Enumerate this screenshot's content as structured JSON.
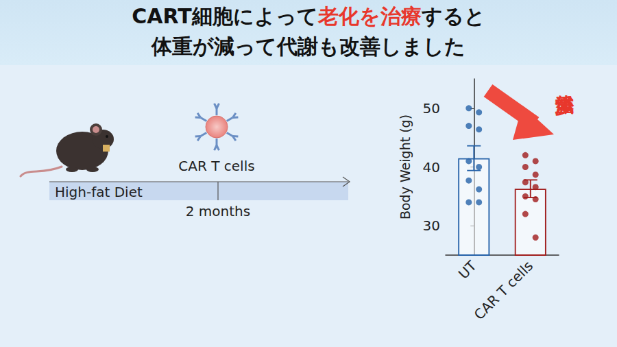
{
  "header": {
    "lines": [
      [
        {
          "text": "CART細胞によって"
        },
        {
          "text": "老化を治療",
          "color": "#e8372c"
        },
        {
          "text": "すると"
        }
      ],
      [
        {
          "text": "体重が減って代謝も改善しました"
        }
      ]
    ]
  },
  "diagram": {
    "treatment": "CAR T cells",
    "diet": "High-fat Diet",
    "duration": "2 months"
  },
  "chart_data": {
    "type": "bar",
    "categories": [
      "UT",
      "CAR T cells"
    ],
    "values": [
      41.5,
      36.3
    ],
    "errors": [
      2.1,
      1.5
    ],
    "points": [
      [
        50.0,
        49.3,
        47.0,
        46.4,
        41.0,
        40.0,
        37.7,
        36.2,
        34.0,
        34.0
      ],
      [
        42.0,
        41.0,
        40.0,
        38.7,
        37.4,
        36.6,
        35.0,
        34.5,
        32.0,
        28.0
      ]
    ],
    "colors": [
      "#2461a8",
      "#a01c1c"
    ],
    "ylabel": "Body Weight (g)",
    "ylim": [
      25,
      55
    ],
    "yticks": [
      30,
      40,
      50
    ],
    "grid": false,
    "annotation": "体重減少"
  }
}
